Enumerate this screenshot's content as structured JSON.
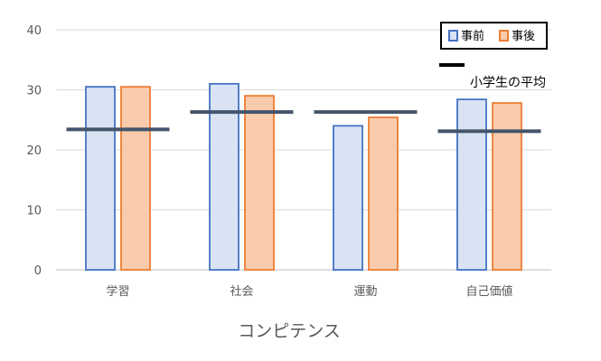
{
  "chart_data": {
    "type": "bar",
    "categories": [
      "学習",
      "社会",
      "運動",
      "自己価値"
    ],
    "series": [
      {
        "name": "事前",
        "values": [
          30.5,
          31.0,
          24.0,
          28.4
        ],
        "fill": "#dae3f3",
        "stroke": "#4472c4"
      },
      {
        "name": "事後",
        "values": [
          30.5,
          29.0,
          25.4,
          27.8
        ],
        "fill": "#f8cbad",
        "stroke": "#ed7d31"
      }
    ],
    "reference": {
      "label": "小学生の平均",
      "values": [
        23.4,
        26.3,
        26.3,
        23.1
      ],
      "color": "#44546a"
    },
    "ylim": [
      0,
      40
    ],
    "yticks": [
      0,
      10,
      20,
      30,
      40
    ],
    "xlabel": "コンピテンス",
    "ylabel": "",
    "grid": true,
    "legend_position": "top-right"
  }
}
